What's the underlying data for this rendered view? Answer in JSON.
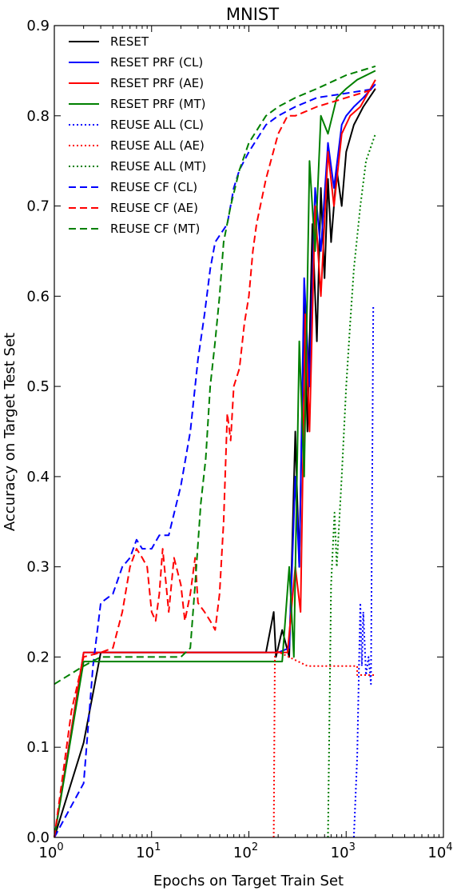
{
  "chart_data": {
    "type": "line",
    "title": "MNIST",
    "xlabel": "Epochs on Target Train Set",
    "ylabel": "Accuracy on Target Test Set",
    "x_scale": "log",
    "xlim": [
      1,
      10000
    ],
    "ylim": [
      0.0,
      0.9
    ],
    "x_ticks": [
      {
        "value": 1,
        "base": "10",
        "exp": "0"
      },
      {
        "value": 10,
        "base": "10",
        "exp": "1"
      },
      {
        "value": 100,
        "base": "10",
        "exp": "2"
      },
      {
        "value": 1000,
        "base": "10",
        "exp": "3"
      },
      {
        "value": 10000,
        "base": "10",
        "exp": "4"
      }
    ],
    "y_ticks": [
      {
        "value": 0.0,
        "label": "0.0"
      },
      {
        "value": 0.1,
        "label": "0.1"
      },
      {
        "value": 0.2,
        "label": "0.2"
      },
      {
        "value": 0.3,
        "label": "0.3"
      },
      {
        "value": 0.4,
        "label": "0.4"
      },
      {
        "value": 0.5,
        "label": "0.5"
      },
      {
        "value": 0.6,
        "label": "0.6"
      },
      {
        "value": 0.7,
        "label": "0.7"
      },
      {
        "value": 0.8,
        "label": "0.8"
      },
      {
        "value": 0.9,
        "label": "0.9"
      }
    ],
    "grid": false,
    "legend_position": "top-left",
    "series": [
      {
        "name": "RESET",
        "color": "#000000",
        "style": "solid",
        "points": [
          [
            1,
            0.0
          ],
          [
            2,
            0.105
          ],
          [
            3,
            0.205
          ],
          [
            150,
            0.205
          ],
          [
            180,
            0.25
          ],
          [
            190,
            0.2
          ],
          [
            220,
            0.23
          ],
          [
            260,
            0.2
          ],
          [
            300,
            0.45
          ],
          [
            330,
            0.3
          ],
          [
            370,
            0.6
          ],
          [
            400,
            0.45
          ],
          [
            450,
            0.68
          ],
          [
            500,
            0.55
          ],
          [
            550,
            0.72
          ],
          [
            600,
            0.62
          ],
          [
            650,
            0.73
          ],
          [
            700,
            0.66
          ],
          [
            800,
            0.74
          ],
          [
            900,
            0.7
          ],
          [
            1000,
            0.76
          ],
          [
            1200,
            0.79
          ],
          [
            1500,
            0.81
          ],
          [
            2000,
            0.83
          ]
        ]
      },
      {
        "name": "RESET PRF (CL)",
        "color": "#0000ff",
        "style": "solid",
        "points": [
          [
            1,
            0.0
          ],
          [
            2,
            0.205
          ],
          [
            200,
            0.205
          ],
          [
            260,
            0.21
          ],
          [
            300,
            0.4
          ],
          [
            330,
            0.3
          ],
          [
            370,
            0.62
          ],
          [
            420,
            0.5
          ],
          [
            480,
            0.72
          ],
          [
            550,
            0.65
          ],
          [
            650,
            0.77
          ],
          [
            750,
            0.72
          ],
          [
            900,
            0.79
          ],
          [
            1000,
            0.8
          ],
          [
            1200,
            0.81
          ],
          [
            1500,
            0.82
          ],
          [
            2000,
            0.835
          ]
        ]
      },
      {
        "name": "RESET PRF (AE)",
        "color": "#ff0000",
        "style": "solid",
        "points": [
          [
            1,
            0.0
          ],
          [
            2,
            0.205
          ],
          [
            250,
            0.205
          ],
          [
            300,
            0.3
          ],
          [
            340,
            0.25
          ],
          [
            380,
            0.58
          ],
          [
            420,
            0.45
          ],
          [
            480,
            0.7
          ],
          [
            550,
            0.6
          ],
          [
            650,
            0.76
          ],
          [
            750,
            0.7
          ],
          [
            900,
            0.78
          ],
          [
            1100,
            0.8
          ],
          [
            1400,
            0.81
          ],
          [
            2000,
            0.84
          ]
        ]
      },
      {
        "name": "RESET PRF (MT)",
        "color": "#008000",
        "style": "solid",
        "points": [
          [
            1,
            0.0
          ],
          [
            2,
            0.195
          ],
          [
            220,
            0.195
          ],
          [
            260,
            0.3
          ],
          [
            290,
            0.2
          ],
          [
            330,
            0.55
          ],
          [
            370,
            0.4
          ],
          [
            420,
            0.75
          ],
          [
            480,
            0.65
          ],
          [
            550,
            0.8
          ],
          [
            650,
            0.78
          ],
          [
            800,
            0.82
          ],
          [
            1000,
            0.83
          ],
          [
            1300,
            0.84
          ],
          [
            2000,
            0.85
          ]
        ]
      },
      {
        "name": "REUSE ALL (CL)",
        "color": "#0000ff",
        "style": "dotted",
        "points": [
          [
            1200,
            0.0
          ],
          [
            1300,
            0.09
          ],
          [
            1350,
            0.18
          ],
          [
            1400,
            0.26
          ],
          [
            1450,
            0.19
          ],
          [
            1500,
            0.25
          ],
          [
            1600,
            0.18
          ],
          [
            1700,
            0.2
          ],
          [
            1800,
            0.17
          ],
          [
            1900,
            0.59
          ]
        ]
      },
      {
        "name": "REUSE ALL (AE)",
        "color": "#ff0000",
        "style": "dotted",
        "points": [
          [
            180,
            0.0
          ],
          [
            185,
            0.2
          ],
          [
            190,
            0.207
          ],
          [
            400,
            0.19
          ],
          [
            1300,
            0.19
          ],
          [
            1300,
            0.18
          ],
          [
            1500,
            0.18
          ],
          [
            2000,
            0.18
          ]
        ]
      },
      {
        "name": "REUSE ALL (MT)",
        "color": "#008000",
        "style": "dotted",
        "points": [
          [
            650,
            0.0
          ],
          [
            700,
            0.28
          ],
          [
            760,
            0.36
          ],
          [
            800,
            0.3
          ],
          [
            900,
            0.4
          ],
          [
            1000,
            0.5
          ],
          [
            1100,
            0.57
          ],
          [
            1200,
            0.63
          ],
          [
            1400,
            0.7
          ],
          [
            1600,
            0.75
          ],
          [
            2000,
            0.78
          ]
        ]
      },
      {
        "name": "REUSE CF (CL)",
        "color": "#0000ff",
        "style": "dashed",
        "points": [
          [
            1,
            0.0
          ],
          [
            2,
            0.06
          ],
          [
            2.5,
            0.19
          ],
          [
            3,
            0.26
          ],
          [
            4,
            0.27
          ],
          [
            5,
            0.3
          ],
          [
            6,
            0.31
          ],
          [
            7,
            0.33
          ],
          [
            8,
            0.32
          ],
          [
            10,
            0.32
          ],
          [
            12,
            0.335
          ],
          [
            15,
            0.335
          ],
          [
            20,
            0.39
          ],
          [
            25,
            0.45
          ],
          [
            30,
            0.53
          ],
          [
            35,
            0.58
          ],
          [
            40,
            0.63
          ],
          [
            45,
            0.66
          ],
          [
            60,
            0.68
          ],
          [
            70,
            0.72
          ],
          [
            80,
            0.74
          ],
          [
            100,
            0.76
          ],
          [
            150,
            0.79
          ],
          [
            200,
            0.8
          ],
          [
            300,
            0.81
          ],
          [
            500,
            0.82
          ],
          [
            1000,
            0.825
          ],
          [
            2000,
            0.83
          ]
        ]
      },
      {
        "name": "REUSE CF (AE)",
        "color": "#ff0000",
        "style": "dashed",
        "points": [
          [
            1,
            0.0
          ],
          [
            1.5,
            0.14
          ],
          [
            2,
            0.2
          ],
          [
            3,
            0.205
          ],
          [
            4,
            0.21
          ],
          [
            5,
            0.25
          ],
          [
            6,
            0.3
          ],
          [
            7,
            0.32
          ],
          [
            8,
            0.31
          ],
          [
            9,
            0.3
          ],
          [
            10,
            0.25
          ],
          [
            11,
            0.24
          ],
          [
            12,
            0.27
          ],
          [
            13,
            0.32
          ],
          [
            15,
            0.25
          ],
          [
            17,
            0.31
          ],
          [
            20,
            0.28
          ],
          [
            22,
            0.24
          ],
          [
            25,
            0.27
          ],
          [
            28,
            0.31
          ],
          [
            30,
            0.26
          ],
          [
            35,
            0.25
          ],
          [
            40,
            0.24
          ],
          [
            45,
            0.23
          ],
          [
            50,
            0.27
          ],
          [
            55,
            0.35
          ],
          [
            60,
            0.47
          ],
          [
            65,
            0.44
          ],
          [
            70,
            0.5
          ],
          [
            80,
            0.52
          ],
          [
            90,
            0.57
          ],
          [
            100,
            0.6
          ],
          [
            110,
            0.65
          ],
          [
            120,
            0.68
          ],
          [
            150,
            0.73
          ],
          [
            200,
            0.78
          ],
          [
            250,
            0.8
          ],
          [
            300,
            0.8
          ],
          [
            500,
            0.81
          ],
          [
            1000,
            0.82
          ],
          [
            2000,
            0.83
          ]
        ]
      },
      {
        "name": "REUSE CF (MT)",
        "color": "#008000",
        "style": "dashed",
        "points": [
          [
            1,
            0.17
          ],
          [
            2,
            0.19
          ],
          [
            3,
            0.2
          ],
          [
            5,
            0.2
          ],
          [
            10,
            0.2
          ],
          [
            20,
            0.2
          ],
          [
            25,
            0.21
          ],
          [
            28,
            0.28
          ],
          [
            32,
            0.37
          ],
          [
            36,
            0.42
          ],
          [
            40,
            0.5
          ],
          [
            45,
            0.55
          ],
          [
            50,
            0.6
          ],
          [
            55,
            0.66
          ],
          [
            65,
            0.7
          ],
          [
            80,
            0.74
          ],
          [
            100,
            0.77
          ],
          [
            150,
            0.8
          ],
          [
            200,
            0.81
          ],
          [
            300,
            0.82
          ],
          [
            500,
            0.83
          ],
          [
            1000,
            0.845
          ],
          [
            2000,
            0.855
          ]
        ]
      }
    ]
  }
}
